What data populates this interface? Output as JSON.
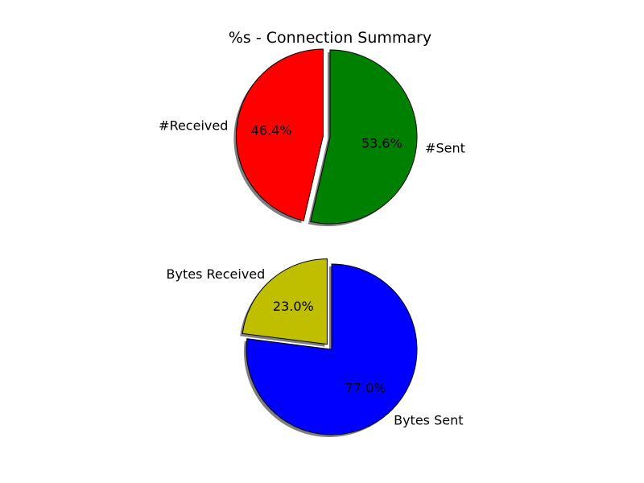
{
  "title": "%s - Connection Summary",
  "chart_data": [
    {
      "type": "pie",
      "title": "%s - Connection Summary",
      "start_angle_deg": 90,
      "shadow": true,
      "slices": [
        {
          "label": "#Received",
          "value": 46.4,
          "pct_label": "46.4%",
          "color": "#ff0000",
          "explode": 0.08
        },
        {
          "label": "#Sent",
          "value": 53.6,
          "pct_label": "53.6%",
          "color": "#008000",
          "explode": 0.0
        }
      ]
    },
    {
      "type": "pie",
      "title": "",
      "start_angle_deg": 90,
      "shadow": true,
      "slices": [
        {
          "label": "Bytes Received",
          "value": 23.0,
          "pct_label": "23.0%",
          "color": "#bfbf00",
          "explode": 0.08
        },
        {
          "label": "Bytes Sent",
          "value": 77.0,
          "pct_label": "77.0%",
          "color": "#0000ff",
          "explode": 0.0
        }
      ]
    }
  ]
}
